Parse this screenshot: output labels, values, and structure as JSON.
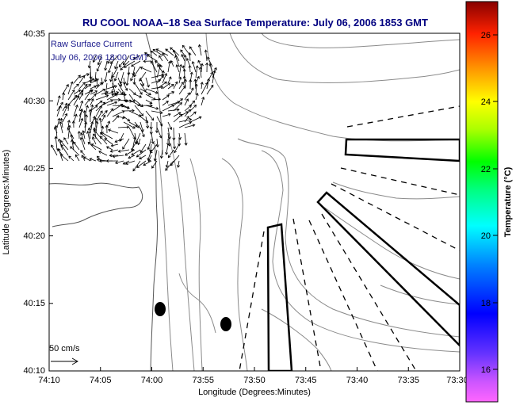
{
  "title": "RU COOL  NOAA–18  Sea Surface Temperature:  July 06, 2006 1853 GMT",
  "annotation": {
    "line1": "Raw Surface Current",
    "line2": "July 06, 2006 18:00 GMT"
  },
  "scale": {
    "label": "50 cm/s",
    "speed_cm_s": 50
  },
  "x_axis": {
    "label": "Longitude (Degrees:Minutes)",
    "ticks": [
      "74:10",
      "74:05",
      "74:00",
      "73:55",
      "73:50",
      "73:45",
      "73:40",
      "73:35",
      "73:30"
    ],
    "range": [
      "74:10",
      "73:30"
    ]
  },
  "y_axis": {
    "label": "Latitude (Degrees:Minutes)",
    "ticks": [
      "40:35",
      "40:30",
      "40:25",
      "40:20",
      "40:15",
      "40:10"
    ],
    "range": [
      "40:10",
      "40:35"
    ]
  },
  "colorbar": {
    "label": "Temperature (°C)",
    "ticks": [
      "26",
      "24",
      "22",
      "20",
      "18",
      "16"
    ],
    "range": [
      15,
      27
    ],
    "colormap": "jet"
  },
  "colors": {
    "title": "#000080",
    "annotation": "#1a1a8c",
    "frame": "#000000",
    "contour": "#808080"
  },
  "markers": [
    {
      "name": "station-a",
      "lon": "74:00",
      "lat": "40:15"
    },
    {
      "name": "station-b",
      "lon": "73:55",
      "lat": "40:13"
    }
  ]
}
